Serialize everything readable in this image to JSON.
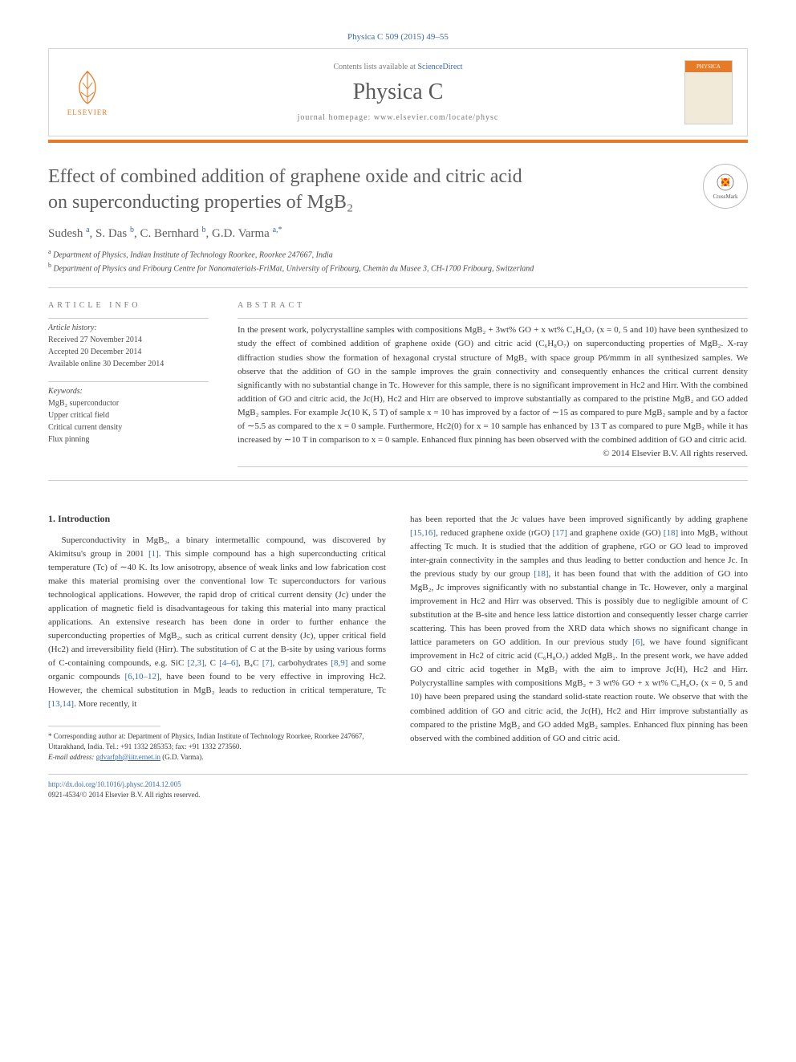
{
  "citation": "Physica C 509 (2015) 49–55",
  "header": {
    "contents_prefix": "Contents lists available at ",
    "contents_link": "ScienceDirect",
    "journal": "Physica C",
    "homepage_prefix": "journal homepage: ",
    "homepage_url": "www.elsevier.com/locate/physc",
    "publisher": "ELSEVIER",
    "cover_label": "PHYSICA"
  },
  "crossmark_label": "CrossMark",
  "title_line1": "Effect of combined addition of graphene oxide and citric acid",
  "title_line2": "on superconducting properties of MgB₂",
  "authors_html": "Sudesh <span class='sup'>a</span>, S. Das <span class='sup'>b</span>, C. Bernhard <span class='sup'>b</span>, G.D. Varma <span class='sup'>a,*</span>",
  "affiliations": [
    "Department of Physics, Indian Institute of Technology Roorkee, Roorkee 247667, India",
    "Department of Physics and Fribourg Centre for Nanomaterials-FriMat, University of Fribourg, Chemin du Musee 3, CH-1700 Fribourg, Switzerland"
  ],
  "info": {
    "label": "ARTICLE INFO",
    "history_head": "Article history:",
    "history": [
      "Received 27 November 2014",
      "Accepted 20 December 2014",
      "Available online 30 December 2014"
    ],
    "keywords_head": "Keywords:",
    "keywords": [
      "MgB₂ superconductor",
      "Upper critical field",
      "Critical current density",
      "Flux pinning"
    ]
  },
  "abstract": {
    "label": "ABSTRACT",
    "text": "In the present work, polycrystalline samples with compositions MgB₂ + 3wt% GO + x wt% C₆H₈O₇ (x = 0, 5 and 10) have been synthesized to study the effect of combined addition of graphene oxide (GO) and citric acid (C₆H₈O₇) on superconducting properties of MgB₂. X-ray diffraction studies show the formation of hexagonal crystal structure of MgB₂ with space group P6/mmm in all synthesized samples. We observe that the addition of GO in the sample improves the grain connectivity and consequently enhances the critical current density significantly with no substantial change in Tc. However for this sample, there is no significant improvement in Hc2 and Hirr. With the combined addition of GO and citric acid, the Jc(H), Hc2 and Hirr are observed to improve substantially as compared to the pristine MgB₂ and GO added MgB₂ samples. For example Jc(10 K, 5 T) of sample x = 10 has improved by a factor of ∼15 as compared to pure MgB₂ sample and by a factor of ∼5.5 as compared to the x = 0 sample. Furthermore, Hc2(0) for x = 10 sample has enhanced by 13 T as compared to pure MgB₂ while it has increased by ∼10 T in comparison to x = 0 sample. Enhanced flux pinning has been observed with the combined addition of GO and citric acid.",
    "copyright": "© 2014 Elsevier B.V. All rights reserved."
  },
  "body": {
    "heading": "1. Introduction",
    "para1": "Superconductivity in MgB₂, a binary intermetallic compound, was discovered by Akimitsu's group in 2001 [1]. This simple compound has a high superconducting critical temperature (Tc) of ∼40 K. Its low anisotropy, absence of weak links and low fabrication cost make this material promising over the conventional low Tc superconductors for various technological applications. However, the rapid drop of critical current density (Jc) under the application of magnetic field is disadvantageous for taking this material into many practical applications. An extensive research has been done in order to further enhance the superconducting properties of MgB₂, such as critical current density (Jc), upper critical field (Hc2) and irreversibility field (Hirr). The substitution of C at the B-site by using various forms of C-containing compounds, e.g. SiC [2,3], C [4–6], B₄C [7], carbohydrates [8,9] and some organic compounds [6,10–12], have been found to be very effective in improving Hc2. However, the chemical substitution in MgB₂ leads to reduction in critical temperature, Tc [13,14]. More recently, it",
    "para2": "has been reported that the Jc values have been improved significantly by adding graphene [15,16], reduced graphene oxide (rGO) [17] and graphene oxide (GO) [18] into MgB₂ without affecting Tc much. It is studied that the addition of graphene, rGO or GO lead to improved inter-grain connectivity in the samples and thus leading to better conduction and hence Jc. In the previous study by our group [18], it has been found that with the addition of GO into MgB₂, Jc improves significantly with no substantial change in Tc. However, only a marginal improvement in Hc2 and Hirr was observed. This is possibly due to negligible amount of C substitution at the B-site and hence less lattice distortion and consequently lesser charge carrier scattering. This has been proved from the XRD data which shows no significant change in lattice parameters on GO addition. In our previous study [6], we have found significant improvement in Hc2 of citric acid (C₆H₈O₇) added MgB₂. In the present work, we have added GO and citric acid together in MgB₂ with the aim to improve Jc(H), Hc2 and Hirr. Polycrystalline samples with compositions MgB₂ + 3 wt% GO + x wt% C₆H₈O₇ (x = 0, 5 and 10) have been prepared using the standard solid-state reaction route. We observe that with the combined addition of GO and citric acid, the Jc(H), Hc2 and Hirr improve substantially as compared to the pristine MgB₂ and GO added MgB₂ samples. Enhanced flux pinning has been observed with the combined addition of GO and citric acid."
  },
  "footnote": {
    "corr": "* Corresponding author at: Department of Physics, Indian Institute of Technology Roorkee, Roorkee 247667, Uttarakhand, India. Tel.: +91 1332 285353; fax: +91 1332 273560.",
    "email_label": "E-mail address:",
    "email": "gdvarfph@iitr.ernet.in",
    "email_who": "(G.D. Varma)."
  },
  "footer": {
    "doi": "http://dx.doi.org/10.1016/j.physc.2014.12.005",
    "issn": "0921-4534/© 2014 Elsevier B.V. All rights reserved."
  },
  "colors": {
    "orange": "#e67a26",
    "link": "#3a6aa8",
    "text": "#3a3a3a"
  }
}
